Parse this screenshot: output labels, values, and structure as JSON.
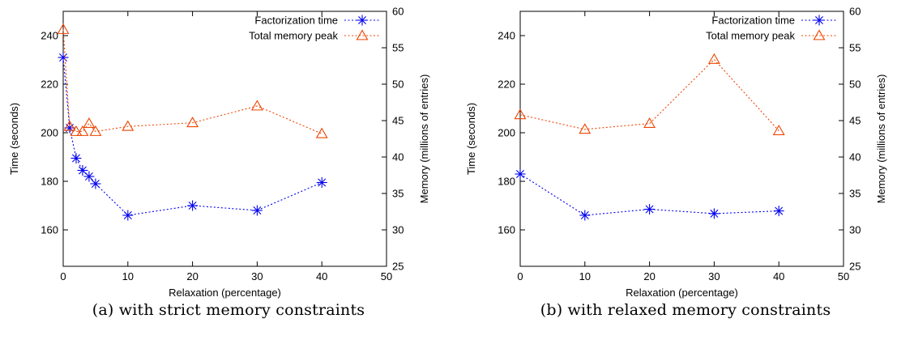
{
  "chart_data": [
    {
      "type": "line",
      "caption": "(a) with strict memory constraints",
      "xlabel": "Relaxation (percentage)",
      "ylabel": "Time (seconds)",
      "y2label": "Memory (millions of entries)",
      "xlim": [
        0,
        50
      ],
      "ylim": [
        145,
        250
      ],
      "y2lim": [
        25,
        60
      ],
      "xticks": [
        0,
        10,
        20,
        30,
        40,
        50
      ],
      "yticks": [
        160,
        180,
        200,
        220,
        240
      ],
      "y2ticks": [
        25,
        30,
        35,
        40,
        45,
        50,
        55,
        60
      ],
      "grid": false,
      "legend_position": "top-right",
      "series": [
        {
          "name": "Factorization time",
          "axis": "left",
          "marker": "asterisk",
          "color": "#0000ee",
          "x": [
            0,
            1,
            2,
            3,
            4,
            5,
            10,
            20,
            30,
            40
          ],
          "y": [
            231,
            202,
            189.5,
            184.5,
            182,
            179,
            166,
            170,
            168,
            179.5
          ]
        },
        {
          "name": "Total memory peak",
          "axis": "right",
          "marker": "triangle",
          "color": "#ee4400",
          "x": [
            0,
            1,
            2,
            3,
            4,
            5,
            10,
            20,
            30,
            40
          ],
          "y": [
            57.5,
            44.2,
            43.5,
            43.5,
            44.6,
            43.5,
            44.2,
            44.7,
            47,
            43.2
          ]
        }
      ]
    },
    {
      "type": "line",
      "caption": "(b) with relaxed memory constraints",
      "xlabel": "Relaxation (percentage)",
      "ylabel": "Time (seconds)",
      "y2label": "Memory (millions of entries)",
      "xlim": [
        0,
        50
      ],
      "ylim": [
        145,
        250
      ],
      "y2lim": [
        25,
        60
      ],
      "xticks": [
        0,
        10,
        20,
        30,
        40,
        50
      ],
      "yticks": [
        160,
        180,
        200,
        220,
        240
      ],
      "y2ticks": [
        25,
        30,
        35,
        40,
        45,
        50,
        55,
        60
      ],
      "grid": false,
      "legend_position": "top-right",
      "series": [
        {
          "name": "Factorization time",
          "axis": "left",
          "marker": "asterisk",
          "color": "#0000ee",
          "x": [
            0,
            10,
            20,
            30,
            40
          ],
          "y": [
            183,
            166,
            168.5,
            166.7,
            167.8
          ]
        },
        {
          "name": "Total memory peak",
          "axis": "right",
          "marker": "triangle",
          "color": "#ee4400",
          "x": [
            0,
            10,
            20,
            30,
            40
          ],
          "y": [
            45.8,
            43.8,
            44.6,
            53.4,
            43.6
          ]
        }
      ]
    }
  ]
}
